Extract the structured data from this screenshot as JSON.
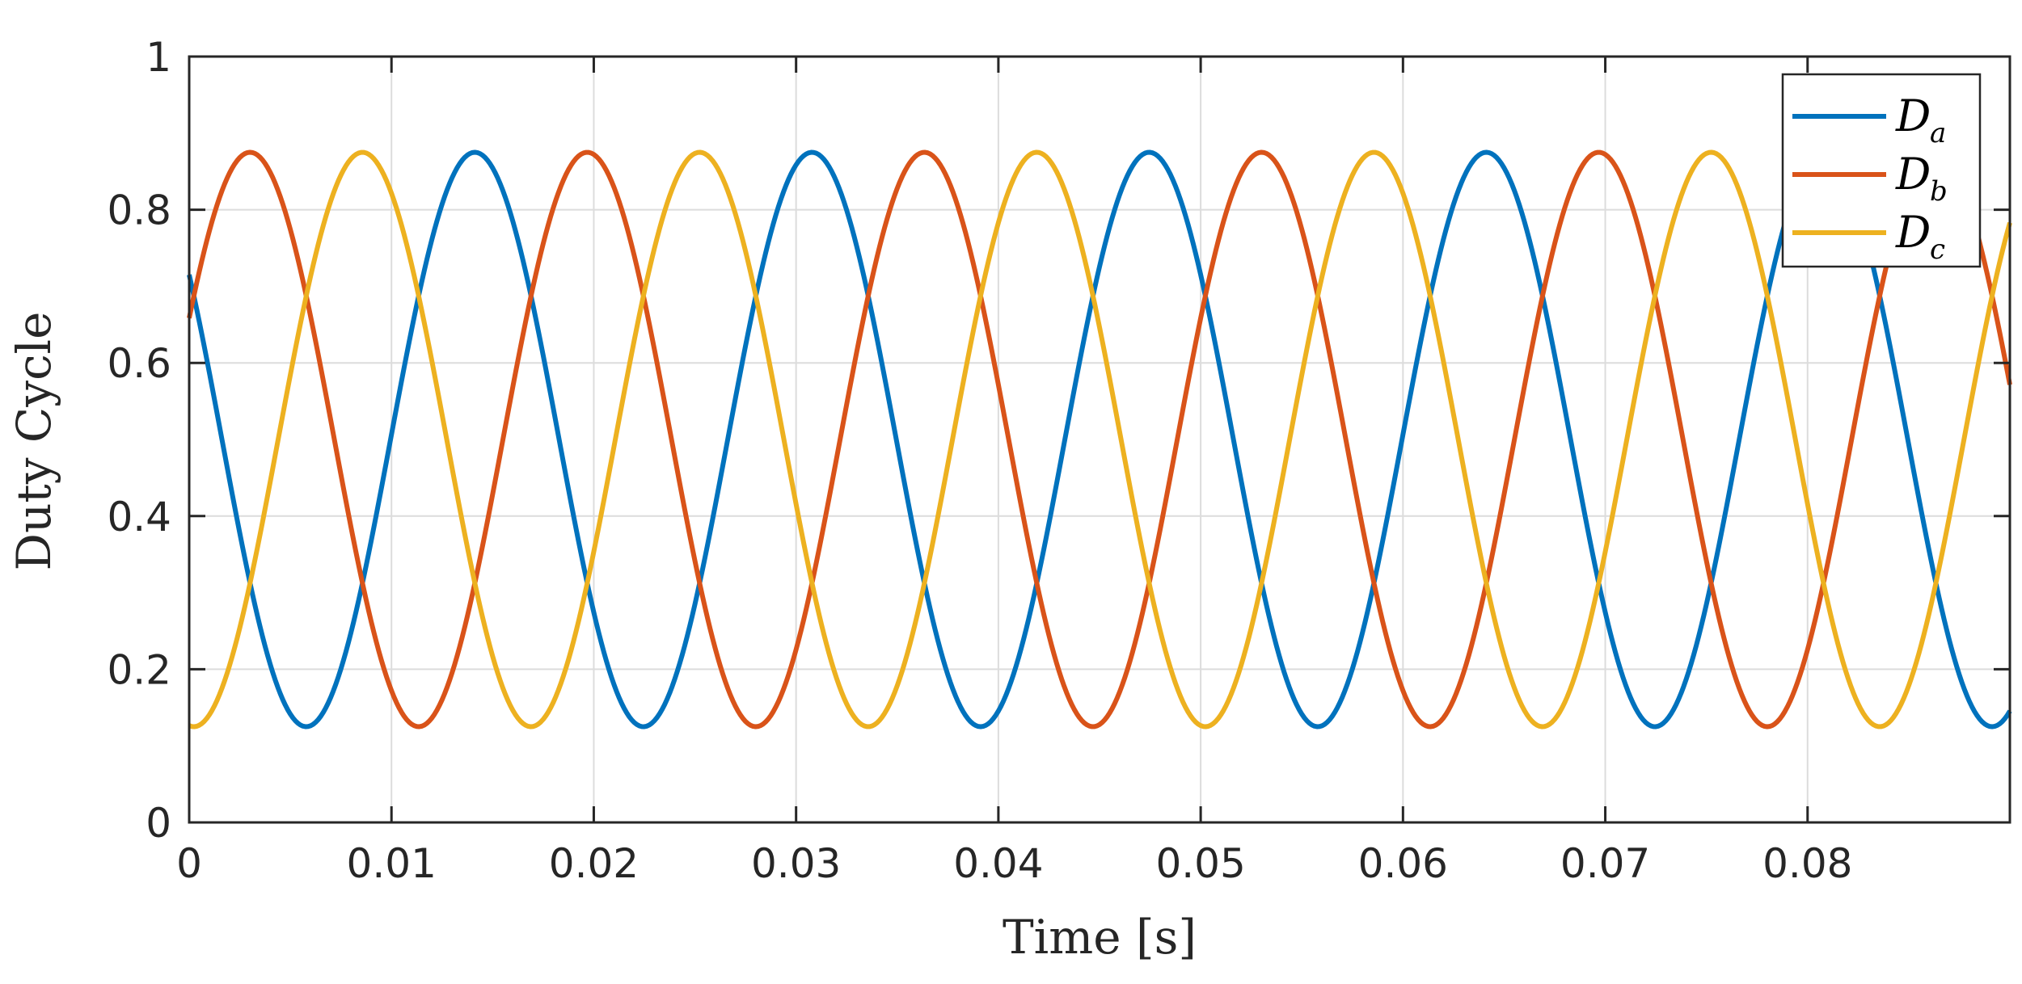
{
  "chart_data": {
    "type": "line",
    "title": "",
    "xlabel": "Time [s]",
    "ylabel": "Duty Cycle",
    "xlim": [
      0,
      0.09
    ],
    "ylim": [
      0,
      1
    ],
    "xticks": [
      0,
      0.01,
      0.02,
      0.03,
      0.04,
      0.05,
      0.06,
      0.07,
      0.08
    ],
    "xtick_labels": [
      "0",
      "0.01",
      "0.02",
      "0.03",
      "0.04",
      "0.05",
      "0.06",
      "0.07",
      "0.08"
    ],
    "yticks": [
      0,
      0.2,
      0.4,
      0.6,
      0.8,
      1
    ],
    "ytick_labels": [
      "0",
      "0.2",
      "0.4",
      "0.6",
      "0.8",
      "1"
    ],
    "grid": true,
    "legend_position": "top-right",
    "waveform": {
      "shape": "sine",
      "offset": 0.5,
      "amplitude": 0.375,
      "frequency_hz": 60,
      "t_start": 0,
      "t_end": 0.09,
      "samples": 721
    },
    "series": [
      {
        "name": "D_a",
        "label_main": "D",
        "label_sub": "a",
        "phase_deg": 145,
        "color": "#0072BD"
      },
      {
        "name": "D_b",
        "label_main": "D",
        "label_sub": "b",
        "phase_deg": 25,
        "color": "#D95319"
      },
      {
        "name": "D_c",
        "label_main": "D",
        "label_sub": "c",
        "phase_deg": -95,
        "color": "#EDB120"
      }
    ]
  }
}
